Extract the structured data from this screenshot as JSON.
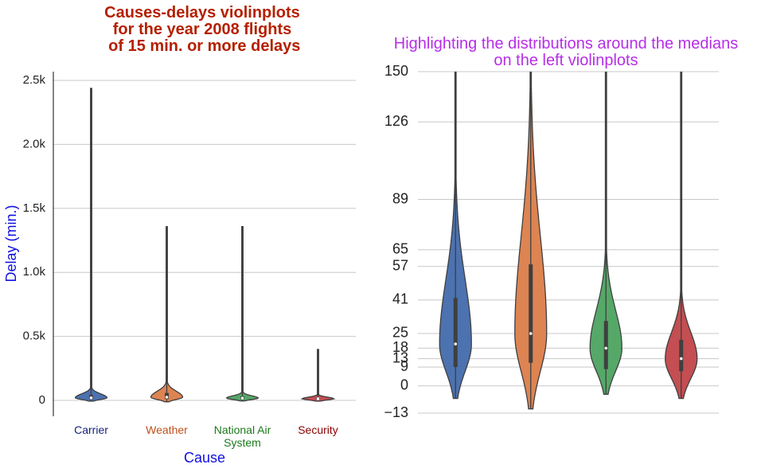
{
  "chart_data": [
    {
      "type": "violin",
      "title": "Causes-delays violinplots\nfor the year 2008 flights\n of 15 min. or more delays",
      "y_label": "Delay (min.)",
      "x_label": "Cause",
      "categories": [
        "Carrier",
        "Weather",
        "National Air System",
        "Security"
      ],
      "colors": [
        "#4c72b0",
        "#dd8452",
        "#55a868",
        "#c44e52"
      ],
      "category_label_colors": [
        "#14237a",
        "#c0501b",
        "#1a7a1a",
        "#8b0000"
      ],
      "stats": [
        {
          "min": -6,
          "q1": 9,
          "median": 20,
          "q3": 42,
          "max": 2440
        },
        {
          "min": -11,
          "q1": 11,
          "median": 25,
          "q3": 58,
          "max": 1360
        },
        {
          "min": -4,
          "q1": 8,
          "median": 18,
          "q3": 31,
          "max": 1360
        },
        {
          "min": -6,
          "q1": 7,
          "median": 13,
          "q3": 22,
          "max": 400
        }
      ],
      "ylim": [
        -124,
        2568
      ],
      "yticks": [
        0,
        {
          "value": 500,
          "label": "0.5k"
        },
        {
          "value": 1000,
          "label": "1.0k"
        },
        {
          "value": 1500,
          "label": "1.5k"
        },
        {
          "value": 2000,
          "label": "2.0k"
        },
        {
          "value": 2500,
          "label": "2.5k"
        }
      ],
      "grid": true
    },
    {
      "type": "violin",
      "title": "Highlighting the distributions around the medians\non the left violinplots",
      "categories": [
        "Carrier",
        "Weather",
        "National Air System",
        "Security"
      ],
      "colors": [
        "#4c72b0",
        "#dd8452",
        "#55a868",
        "#c44e52"
      ],
      "stats": [
        {
          "min": -6,
          "q1": 9,
          "median": 20,
          "q3": 42,
          "max": 2440
        },
        {
          "min": -11,
          "q1": 11,
          "median": 25,
          "q3": 58,
          "max": 1360
        },
        {
          "min": -4,
          "q1": 8,
          "median": 18,
          "q3": 31,
          "max": 1360
        },
        {
          "min": -6,
          "q1": 7,
          "median": 13,
          "q3": 22,
          "max": 400
        }
      ],
      "ylim": [
        -13,
        150
      ],
      "yticks": [
        {
          "value": -13,
          "label": "−13"
        },
        0,
        9,
        13,
        18,
        25,
        41,
        57,
        65,
        89,
        126,
        150
      ],
      "grid": true
    }
  ]
}
